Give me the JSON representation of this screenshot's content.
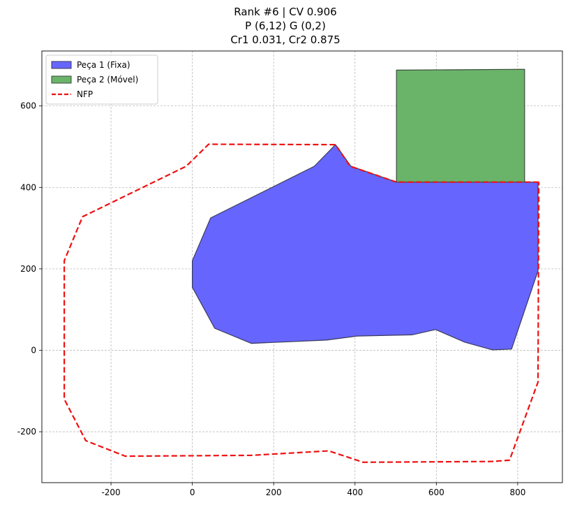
{
  "chart_data": {
    "type": "polygon-plot",
    "title": [
      "Rank #6 | CV 0.906",
      "P (6,12) G (0,2)",
      "Cr1 0.031, Cr2 0.875"
    ],
    "xlim": [
      -370,
      910
    ],
    "ylim": [
      -325,
      735
    ],
    "xticks": [
      -200,
      0,
      200,
      400,
      600,
      800
    ],
    "yticks": [
      -200,
      0,
      200,
      400,
      600
    ],
    "grid": true,
    "legend_placement": "top-left",
    "series": [
      {
        "name": "Peça 1 (Fixa)",
        "kind": "polygon",
        "color": "#6666ff",
        "edge_color": "#3a3a5a",
        "points": [
          [
            0,
            220
          ],
          [
            0,
            155
          ],
          [
            55,
            54
          ],
          [
            145,
            17
          ],
          [
            330,
            25
          ],
          [
            405,
            35
          ],
          [
            540,
            38
          ],
          [
            598,
            51
          ],
          [
            670,
            20
          ],
          [
            738,
            1
          ],
          [
            785,
            3
          ],
          [
            850,
            195
          ],
          [
            850,
            413
          ],
          [
            502,
            413
          ],
          [
            390,
            452
          ],
          [
            352,
            505
          ],
          [
            300,
            452
          ],
          [
            45,
            325
          ]
        ]
      },
      {
        "name": "Peça 2 (Móvel)",
        "kind": "polygon",
        "color": "#6ab46a",
        "edge_color": "#3a4a3a",
        "points": [
          [
            502,
            413
          ],
          [
            817,
            413
          ],
          [
            817,
            690
          ],
          [
            502,
            688
          ]
        ]
      },
      {
        "name": "NFP",
        "kind": "dashed-line",
        "color": "#ee1111",
        "points": [
          [
            852,
            413
          ],
          [
            502,
            413
          ],
          [
            388,
            452
          ],
          [
            352,
            505
          ],
          [
            40,
            506
          ],
          [
            -15,
            452
          ],
          [
            -270,
            328
          ],
          [
            -315,
            220
          ],
          [
            -315,
            -120
          ],
          [
            -262,
            -222
          ],
          [
            -165,
            -260
          ],
          [
            145,
            -258
          ],
          [
            335,
            -247
          ],
          [
            420,
            -275
          ],
          [
            735,
            -273
          ],
          [
            780,
            -270
          ],
          [
            850,
            -78
          ],
          [
            852,
            413
          ]
        ]
      }
    ]
  }
}
